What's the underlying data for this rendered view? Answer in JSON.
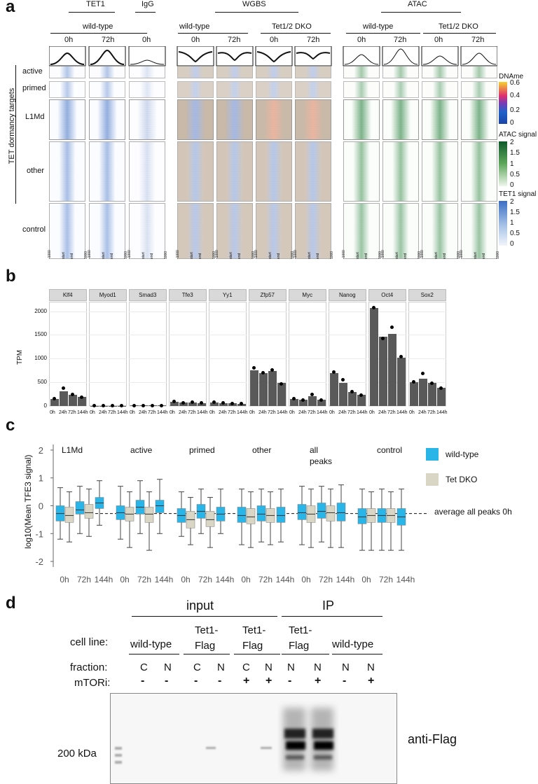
{
  "panel_a": {
    "label": "a",
    "group_headers": {
      "tet1": "TET1",
      "igg": "IgG",
      "wgbs": "WGBS",
      "atac": "ATAC"
    },
    "condition_headers": {
      "wt1": "wild-type",
      "wt2": "wild-type",
      "dko1": "Tet1/2 DKO",
      "wt3": "wild-type",
      "dko2": "Tet1/2 DKO"
    },
    "timepoints": [
      "0h",
      "72h",
      "0h",
      "0h",
      "72h",
      "0h",
      "72h",
      "0h",
      "72h",
      "0h",
      "72h"
    ],
    "row_groups": [
      "active",
      "primed",
      "L1Md",
      "other",
      "control"
    ],
    "vertical_label": "TET dormancy targets",
    "legends": {
      "dname": {
        "title": "DNAme",
        "ticks": [
          "0.6",
          "0.4",
          "0.2",
          "0"
        ]
      },
      "atac": {
        "title": "ATAC signal",
        "ticks": [
          "2",
          "1.5",
          "1",
          "0.5",
          "0"
        ]
      },
      "tet1": {
        "title": "TET1 signal",
        "ticks": [
          "2",
          "1.5",
          "1",
          "0.5",
          "0"
        ]
      }
    },
    "axis_ticks": [
      "-1000",
      "start",
      "end",
      "1000"
    ]
  },
  "panel_b": {
    "label": "b",
    "chart_data": {
      "type": "bar",
      "ylabel": "TPM",
      "ylim": [
        0,
        2200
      ],
      "yticks": [
        "0",
        "500",
        "1000",
        "1500",
        "2000"
      ],
      "categories": [
        "0h",
        "24h",
        "72h",
        "144h"
      ],
      "facets": [
        {
          "name": "Klf4",
          "values": [
            150,
            310,
            240,
            195
          ],
          "points": [
            [
              150
            ],
            [
              380
            ],
            [
              240
            ],
            [
              190
            ]
          ]
        },
        {
          "name": "Myod1",
          "values": [
            5,
            5,
            5,
            5
          ],
          "points": [
            [
              5
            ],
            [
              5
            ],
            [
              5
            ],
            [
              5
            ]
          ]
        },
        {
          "name": "Smad3",
          "values": [
            10,
            10,
            10,
            10
          ],
          "points": [
            [
              10
            ],
            [
              10
            ],
            [
              10
            ],
            [
              10
            ]
          ]
        },
        {
          "name": "Tfe3",
          "values": [
            85,
            75,
            80,
            60
          ],
          "points": [
            [
              100
            ],
            [
              70
            ],
            [
              85
            ],
            [
              60
            ]
          ]
        },
        {
          "name": "Yy1",
          "values": [
            75,
            65,
            55,
            45
          ],
          "points": [
            [
              75
            ],
            [
              70
            ],
            [
              55
            ],
            [
              45
            ]
          ]
        },
        {
          "name": "Zfp57",
          "values": [
            760,
            700,
            740,
            480
          ],
          "points": [
            [
              800
            ],
            [
              700
            ],
            [
              760
            ],
            [
              470
            ]
          ]
        },
        {
          "name": "Myc",
          "values": [
            150,
            130,
            200,
            130
          ],
          "points": [
            [
              150
            ],
            [
              130
            ],
            [
              250
            ],
            [
              130
            ]
          ]
        },
        {
          "name": "Nanog",
          "values": [
            700,
            480,
            290,
            230
          ],
          "points": [
            [
              720
            ],
            [
              560
            ],
            [
              300
            ],
            [
              230
            ]
          ]
        },
        {
          "name": "Oct4",
          "values": [
            2060,
            1460,
            1520,
            1020
          ],
          "points": [
            [
              2080
            ],
            [
              1430
            ],
            [
              1660
            ],
            [
              1040
            ]
          ]
        },
        {
          "name": "Sox2",
          "values": [
            500,
            580,
            480,
            390
          ],
          "points": [
            [
              510
            ],
            [
              680
            ],
            [
              480
            ],
            [
              380
            ]
          ]
        }
      ]
    }
  },
  "panel_c": {
    "label": "c",
    "chart_data": {
      "type": "boxplot",
      "ylabel": "log10(Mean TFE3 signal)",
      "ylim": [
        -2.2,
        2.2
      ],
      "yticks": [
        "2",
        "1",
        "0",
        "-1",
        "-2"
      ],
      "reference_line": {
        "value": -0.28,
        "label": "average all peaks 0h"
      },
      "categories": [
        "0h",
        "72h",
        "144h"
      ],
      "legend": [
        {
          "name": "wild-type",
          "color": "#29b5e8"
        },
        {
          "name": "Tet DKO",
          "color": "#d9d6c6"
        }
      ],
      "groups": [
        {
          "name": "L1Md",
          "wt": [
            [
              -1.2,
              -0.55,
              -0.28,
              0.0,
              0.65
            ],
            [
              -1.0,
              -0.3,
              -0.15,
              0.15,
              0.7
            ],
            [
              -0.7,
              -0.1,
              0.1,
              0.3,
              0.9
            ]
          ],
          "dko": [
            [
              -1.3,
              -0.6,
              -0.35,
              -0.05,
              0.5
            ],
            [
              -1.1,
              -0.45,
              -0.25,
              0.05,
              0.6
            ],
            null
          ]
        },
        {
          "name": "active",
          "wt": [
            [
              -1.2,
              -0.5,
              -0.25,
              0.0,
              0.7
            ],
            [
              -1.0,
              -0.3,
              -0.05,
              0.2,
              0.9
            ],
            [
              -1.0,
              -0.25,
              0.0,
              0.2,
              0.95
            ]
          ],
          "dko": [
            [
              -1.5,
              -0.55,
              -0.3,
              -0.05,
              0.5
            ],
            [
              -1.6,
              -0.6,
              -0.3,
              -0.05,
              0.5
            ],
            null
          ]
        },
        {
          "name": "primed",
          "wt": [
            [
              -1.1,
              -0.6,
              -0.35,
              -0.1,
              0.5
            ],
            [
              -1.0,
              -0.45,
              -0.2,
              0.05,
              0.6
            ],
            [
              -1.0,
              -0.55,
              -0.3,
              -0.05,
              0.6
            ]
          ],
          "dko": [
            [
              -1.4,
              -0.8,
              -0.5,
              -0.2,
              0.3
            ],
            [
              -1.5,
              -0.75,
              -0.5,
              -0.2,
              0.3
            ],
            null
          ]
        },
        {
          "name": "other",
          "wt": [
            [
              -1.4,
              -0.6,
              -0.35,
              -0.05,
              0.6
            ],
            [
              -1.3,
              -0.55,
              -0.3,
              0.0,
              0.6
            ],
            [
              -1.3,
              -0.6,
              -0.35,
              -0.05,
              0.6
            ]
          ],
          "dko": [
            [
              -1.5,
              -0.65,
              -0.4,
              -0.1,
              0.5
            ],
            [
              -1.4,
              -0.6,
              -0.35,
              -0.1,
              0.5
            ],
            null
          ]
        },
        {
          "name": "all peaks",
          "wt": [
            [
              -1.4,
              -0.5,
              -0.25,
              0.05,
              0.7
            ],
            [
              -1.3,
              -0.45,
              -0.2,
              0.1,
              0.7
            ],
            [
              -1.5,
              -0.55,
              -0.25,
              0.1,
              0.75
            ]
          ],
          "dko": [
            [
              -1.5,
              -0.6,
              -0.3,
              0.0,
              0.6
            ],
            [
              -1.5,
              -0.55,
              -0.25,
              0.0,
              0.6
            ],
            null
          ]
        },
        {
          "name": "control",
          "wt": [
            [
              -1.6,
              -0.65,
              -0.4,
              -0.1,
              0.6
            ],
            [
              -1.6,
              -0.6,
              -0.35,
              -0.1,
              0.6
            ],
            [
              -1.6,
              -0.7,
              -0.4,
              -0.1,
              0.6
            ]
          ],
          "dko": [
            [
              -1.6,
              -0.6,
              -0.35,
              -0.1,
              0.5
            ],
            [
              -1.6,
              -0.6,
              -0.35,
              -0.1,
              0.5
            ],
            null
          ]
        }
      ]
    }
  },
  "panel_d": {
    "label": "d",
    "input_header": "input",
    "ip_header": "IP",
    "cell_line_label": "cell line:",
    "fraction_label": "fraction:",
    "mtori_label": "mTORi:",
    "cell_lines": [
      "wild-type",
      "Tet1-\nFlag",
      "Tet1-\nFlag",
      "Tet1-\nFlag",
      "wild-type"
    ],
    "fractions": [
      "C",
      "N",
      "C",
      "N",
      "C",
      "N",
      "N",
      "N",
      "N",
      "N"
    ],
    "mtori": [
      "-",
      "-",
      "-",
      "-",
      "+",
      "+",
      "-",
      "+",
      "-",
      "+"
    ],
    "marker": "200 kDa",
    "antibody": "anti-Flag"
  }
}
